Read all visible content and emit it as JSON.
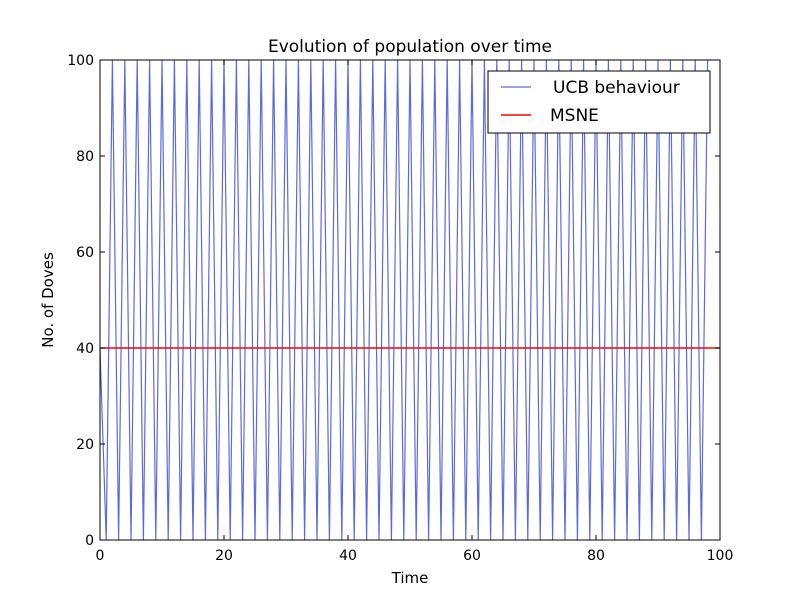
{
  "chart_data": {
    "type": "line",
    "title": "Evolution of population over time",
    "xlabel": "Time",
    "ylabel": "No. of Doves",
    "xlim": [
      0,
      100
    ],
    "ylim": [
      0,
      100
    ],
    "xticks": [
      "0",
      "20",
      "40",
      "60",
      "80",
      "100"
    ],
    "yticks": [
      "0",
      "20",
      "40",
      "60",
      "80",
      "100"
    ],
    "grid": false,
    "legend_position": "top-right",
    "series": [
      {
        "name": "UCB behaviour",
        "color": "#5b6bdb",
        "x": [
          0,
          1,
          2,
          3,
          4,
          5,
          6,
          7,
          8,
          9,
          10,
          11,
          12,
          13,
          14,
          15,
          16,
          17,
          18,
          19,
          20,
          21,
          22,
          23,
          24,
          25,
          26,
          27,
          28,
          29,
          30,
          31,
          32,
          33,
          34,
          35,
          36,
          37,
          38,
          39,
          40,
          41,
          42,
          43,
          44,
          45,
          46,
          47,
          48,
          49,
          50,
          51,
          52,
          53,
          54,
          55,
          56,
          57,
          58,
          59,
          60,
          61,
          62,
          63,
          64,
          65,
          66,
          67,
          68,
          69,
          70,
          71,
          72,
          73,
          74,
          75,
          76,
          77,
          78,
          79,
          80,
          81,
          82,
          83,
          84,
          85,
          86,
          87,
          88,
          89,
          90,
          91,
          92,
          93,
          94,
          95,
          96,
          97,
          98
        ],
        "values": [
          40,
          0,
          100,
          0,
          100,
          0,
          100,
          0,
          100,
          0,
          100,
          0,
          100,
          0,
          100,
          0,
          100,
          0,
          100,
          0,
          100,
          0,
          100,
          0,
          100,
          0,
          100,
          0,
          100,
          0,
          100,
          0,
          100,
          0,
          100,
          0,
          100,
          0,
          100,
          0,
          100,
          0,
          100,
          0,
          100,
          0,
          100,
          0,
          100,
          0,
          100,
          0,
          100,
          0,
          100,
          0,
          100,
          0,
          100,
          0,
          100,
          0,
          100,
          0,
          100,
          0,
          100,
          0,
          100,
          0,
          100,
          0,
          100,
          0,
          100,
          0,
          100,
          0,
          100,
          0,
          100,
          0,
          100,
          0,
          100,
          0,
          100,
          0,
          100,
          0,
          100,
          0,
          100,
          0,
          100,
          0,
          100,
          0,
          100
        ]
      },
      {
        "name": "MSNE",
        "color": "#ff0000",
        "x": [
          0,
          100
        ],
        "values": [
          40,
          40
        ]
      }
    ]
  }
}
